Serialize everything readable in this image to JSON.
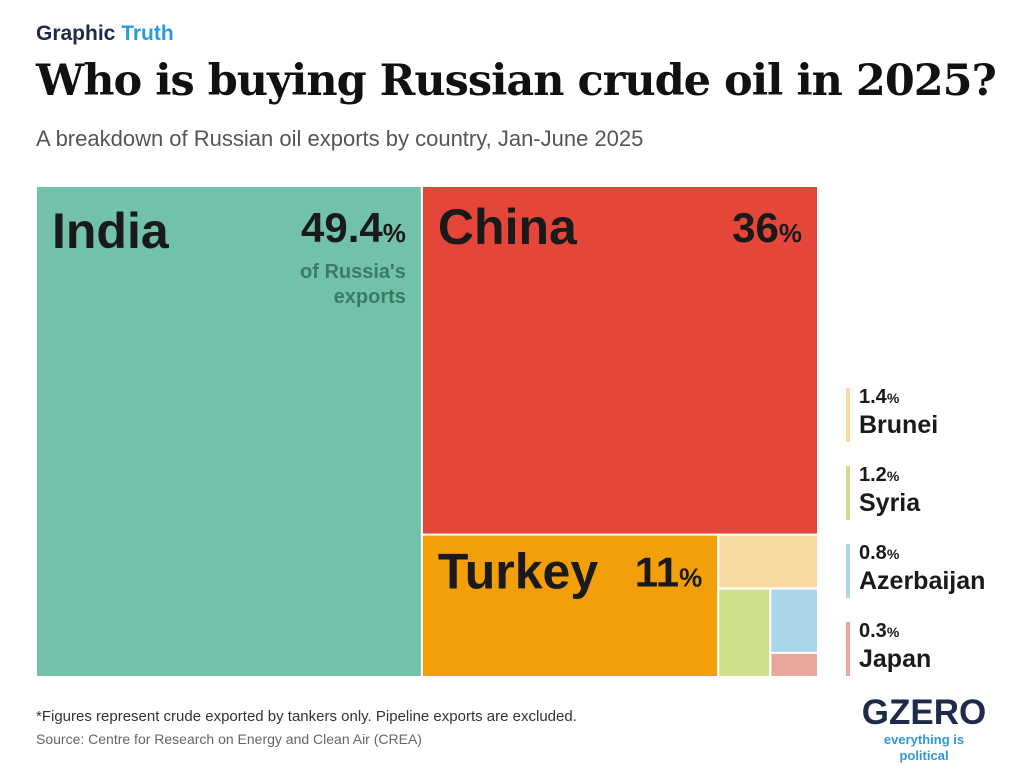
{
  "header": {
    "brand_part1": "Graphic",
    "brand_part2": "Truth",
    "title": "Who is buying Russian crude oil in 2025?",
    "subtitle": "A breakdown of Russian oil exports by country, Jan-June 2025"
  },
  "chart_data": {
    "type": "treemap",
    "title": "Who is buying Russian crude oil in 2025?",
    "subtitle": "A breakdown of Russian oil exports by country, Jan-June 2025",
    "unit": "%",
    "data": [
      {
        "name": "India",
        "value": 49.4,
        "label": "49.4",
        "color": "#72c2ab",
        "note": [
          "of Russia's",
          "exports"
        ]
      },
      {
        "name": "China",
        "value": 36,
        "label": "36",
        "color": "#e4463a"
      },
      {
        "name": "Turkey",
        "value": 11,
        "label": "11",
        "color": "#f29f0a"
      },
      {
        "name": "Brunei",
        "value": 1.4,
        "label": "1.4",
        "color": "#f8d9a0"
      },
      {
        "name": "Syria",
        "value": 1.2,
        "label": "1.2",
        "color": "#cde087"
      },
      {
        "name": "Azerbaijan",
        "value": 0.8,
        "label": "0.8",
        "color": "#a9d6ea"
      },
      {
        "name": "Japan",
        "value": 0.3,
        "label": "0.3",
        "color": "#eba79e"
      }
    ]
  },
  "legend": [
    {
      "value": "1.4",
      "unit": "%",
      "name": "Brunei",
      "color": "#f8d9a0"
    },
    {
      "value": "1.2",
      "unit": "%",
      "name": "Syria",
      "color": "#cde087"
    },
    {
      "value": "0.8",
      "unit": "%",
      "name": "Azerbaijan",
      "color": "#a9d6ea"
    },
    {
      "value": "0.3",
      "unit": "%",
      "name": "Japan",
      "color": "#eba79e"
    }
  ],
  "footer": {
    "footnote": "*Figures represent crude exported by tankers only. Pipeline exports are excluded.",
    "source": "Source: Centre for Research on Energy and Clean Air (CREA)",
    "logo": "GZERO",
    "logo_tagline": "everything is political"
  }
}
